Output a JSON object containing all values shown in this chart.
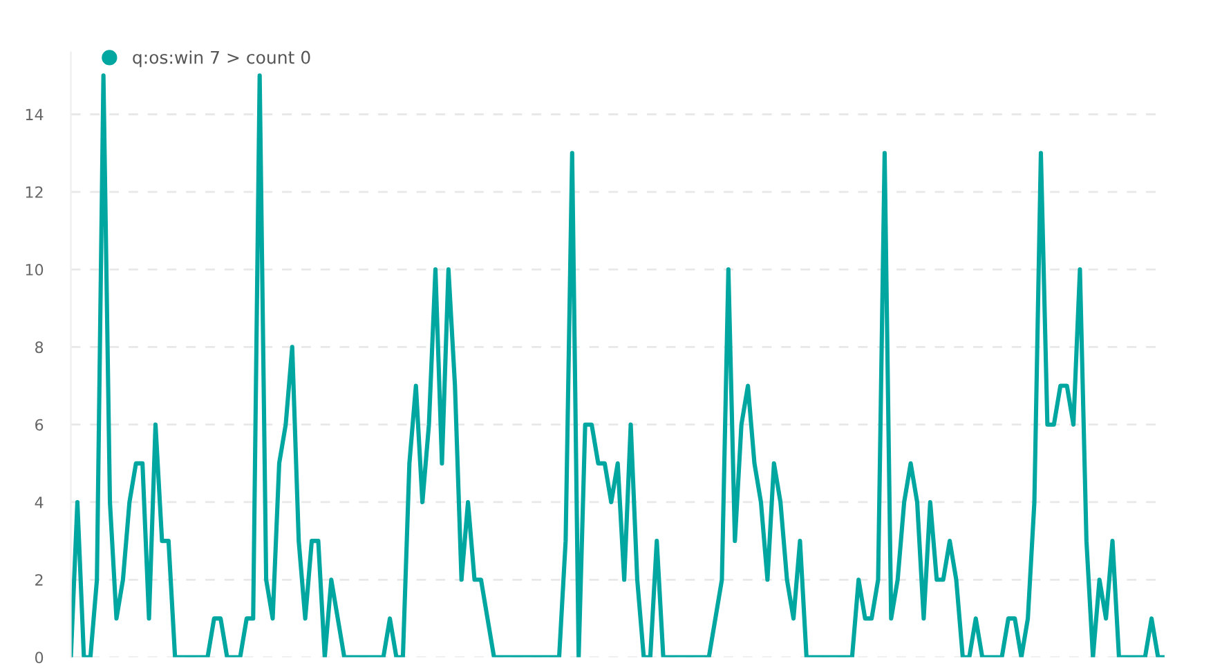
{
  "chart_data": {
    "type": "line",
    "categories": [
      null,
      null,
      null,
      null,
      null,
      null,
      null,
      null,
      null,
      null,
      null,
      null,
      null,
      null,
      null,
      null,
      null,
      null,
      null,
      null,
      null,
      null,
      null,
      null,
      null,
      null,
      null,
      null,
      null,
      null,
      null,
      null,
      null,
      null,
      null,
      null,
      null,
      null,
      null,
      null,
      null,
      null,
      null,
      null,
      null,
      null,
      null,
      null,
      null,
      null,
      null,
      null,
      null,
      null,
      null,
      null,
      null,
      null,
      null,
      null,
      null,
      null,
      null,
      null,
      null,
      null,
      null,
      null,
      null,
      null,
      null,
      null,
      null,
      null,
      null,
      null,
      null,
      null,
      null,
      null,
      null,
      null,
      null,
      null,
      null,
      null,
      null,
      null,
      null,
      null,
      null,
      null,
      null,
      null,
      null,
      null,
      null,
      null,
      null,
      null,
      null,
      null,
      null,
      null,
      null,
      null,
      null,
      null,
      null,
      null,
      null,
      null,
      null,
      null,
      null,
      null,
      null,
      null,
      null,
      null,
      null,
      null,
      null,
      null,
      null,
      null,
      null,
      null,
      null,
      null,
      null,
      null,
      null,
      null,
      null,
      null,
      null,
      null,
      null,
      null,
      null,
      null,
      null,
      null,
      null,
      null,
      null,
      null,
      null,
      null,
      null,
      null,
      null,
      null,
      null,
      null,
      null,
      null,
      null,
      null,
      null,
      null,
      null,
      null,
      null,
      null,
      null,
      null,
      null
    ],
    "series": [
      {
        "name": "q:os:win 7 > count 0",
        "color": "#00a6a0",
        "values": [
          0,
          4,
          0,
          0,
          2,
          15,
          4,
          1,
          2,
          4,
          5,
          5,
          1,
          6,
          3,
          3,
          0,
          0,
          0,
          0,
          0,
          0,
          1,
          1,
          0,
          0,
          0,
          1,
          1,
          15,
          2,
          1,
          5,
          6,
          8,
          3,
          1,
          3,
          3,
          0,
          2,
          1,
          0,
          0,
          0,
          0,
          0,
          0,
          0,
          1,
          0,
          0,
          5,
          7,
          4,
          6,
          10,
          5,
          10,
          7,
          2,
          4,
          2,
          2,
          1,
          0,
          0,
          0,
          0,
          0,
          0,
          0,
          0,
          0,
          0,
          0,
          3,
          13,
          0,
          6,
          6,
          5,
          5,
          4,
          5,
          2,
          6,
          2,
          0,
          0,
          3,
          0,
          0,
          0,
          0,
          0,
          0,
          0,
          0,
          1,
          2,
          10,
          3,
          6,
          7,
          5,
          4,
          2,
          5,
          4,
          2,
          1,
          3,
          0,
          0,
          0,
          0,
          0,
          0,
          0,
          0,
          2,
          1,
          1,
          2,
          13,
          1,
          2,
          4,
          5,
          4,
          1,
          4,
          2,
          2,
          3,
          2,
          0,
          0,
          1,
          0,
          0,
          0,
          0,
          1,
          1,
          0,
          1,
          4,
          13,
          6,
          6,
          7,
          7,
          6,
          10,
          3,
          0,
          2,
          1,
          3,
          0,
          0,
          0,
          0,
          0,
          1,
          0,
          0
        ]
      }
    ],
    "ylim": [
      0,
      15.6
    ],
    "yticks": [
      0,
      2,
      4,
      6,
      8,
      10,
      12,
      14
    ],
    "grid": "y",
    "legend": "top left",
    "line_style": "solid",
    "tick_labels": "y"
  }
}
